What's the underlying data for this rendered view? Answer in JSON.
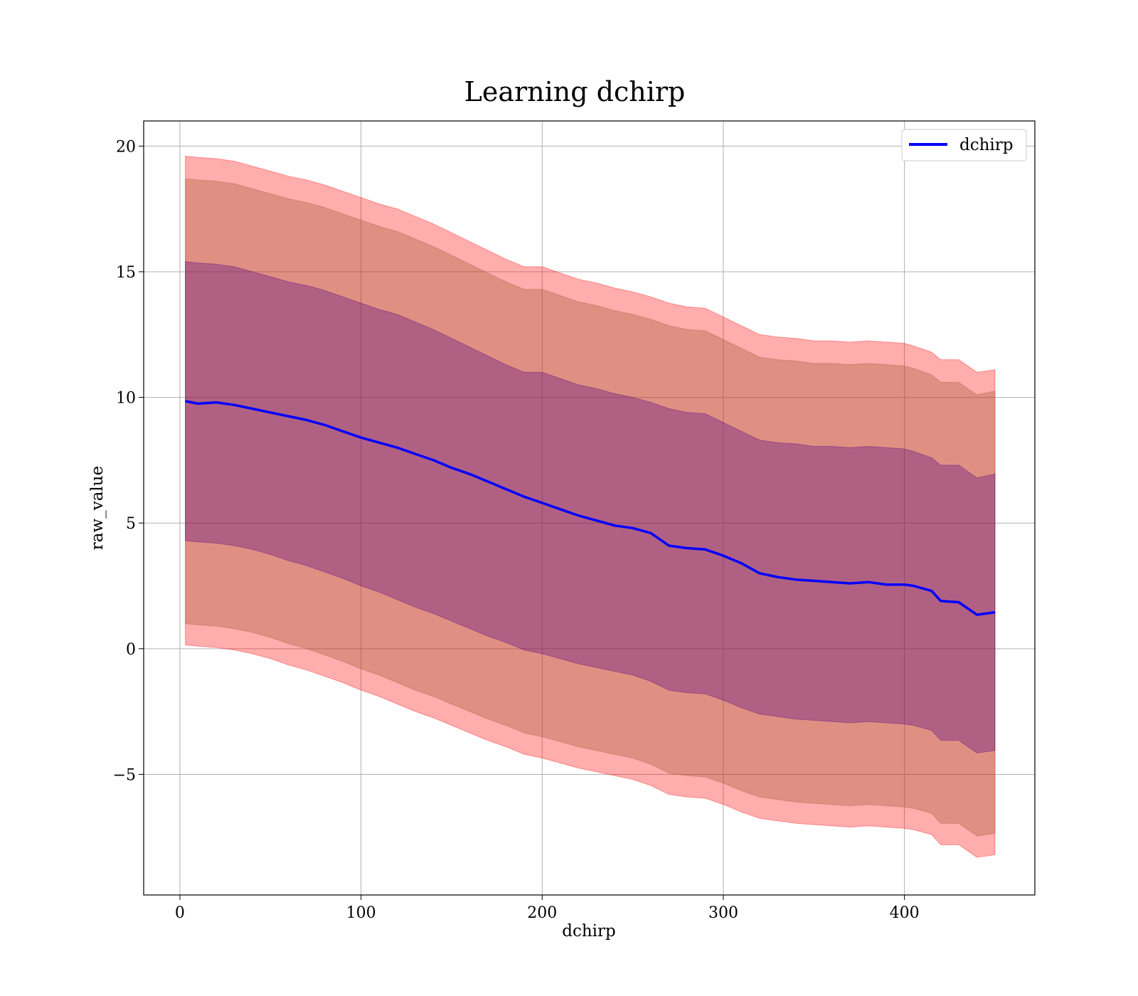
{
  "chart_data": {
    "type": "area",
    "title": "Learning dchirp",
    "xlabel": "dchirp",
    "ylabel": "raw_value",
    "xlim": [
      -20,
      472
    ],
    "ylim": [
      -9.8,
      21
    ],
    "xticks": [
      0,
      100,
      200,
      300,
      400
    ],
    "yticks": [
      -5,
      0,
      5,
      10,
      15,
      20
    ],
    "ytick_labels": [
      "−5",
      "0",
      "5",
      "10",
      "15",
      "20"
    ],
    "grid": true,
    "legend": {
      "position": "top-right",
      "entries": [
        "dchirp"
      ]
    },
    "colors": {
      "line": "#0000ff",
      "band_outer": "#ff0000",
      "band_middle": "#a0522d",
      "band_inner": "#4b0082"
    },
    "x": [
      3,
      10,
      20,
      30,
      40,
      50,
      60,
      70,
      80,
      90,
      100,
      110,
      120,
      130,
      140,
      150,
      160,
      170,
      180,
      190,
      200,
      210,
      220,
      230,
      240,
      250,
      260,
      270,
      280,
      290,
      300,
      310,
      320,
      330,
      340,
      350,
      360,
      370,
      380,
      390,
      400,
      405,
      415,
      420,
      430,
      440,
      450
    ],
    "series": [
      {
        "name": "dchirp",
        "values": [
          9.85,
          9.75,
          9.8,
          9.7,
          9.55,
          9.4,
          9.25,
          9.1,
          8.9,
          8.65,
          8.4,
          8.2,
          8.0,
          7.75,
          7.5,
          7.2,
          6.95,
          6.65,
          6.35,
          6.05,
          5.8,
          5.55,
          5.3,
          5.1,
          4.9,
          4.8,
          4.6,
          4.1,
          4.0,
          3.95,
          3.7,
          3.4,
          3.0,
          2.85,
          2.75,
          2.7,
          2.65,
          2.6,
          2.65,
          2.55,
          2.55,
          2.5,
          2.3,
          1.9,
          1.85,
          1.35,
          1.45
        ]
      }
    ],
    "bands": [
      {
        "level": "outer",
        "upper": [
          19.6,
          19.55,
          19.5,
          19.4,
          19.2,
          19.0,
          18.8,
          18.65,
          18.45,
          18.2,
          17.95,
          17.7,
          17.5,
          17.2,
          16.9,
          16.55,
          16.2,
          15.85,
          15.5,
          15.2,
          15.2,
          14.95,
          14.7,
          14.55,
          14.35,
          14.2,
          14.0,
          13.75,
          13.6,
          13.55,
          13.2,
          12.85,
          12.5,
          12.4,
          12.35,
          12.25,
          12.25,
          12.2,
          12.25,
          12.2,
          12.15,
          12.05,
          11.8,
          11.5,
          11.5,
          11.0,
          11.1
        ],
        "lower": [
          0.15,
          0.1,
          0.05,
          -0.05,
          -0.2,
          -0.4,
          -0.65,
          -0.85,
          -1.1,
          -1.35,
          -1.65,
          -1.9,
          -2.2,
          -2.5,
          -2.75,
          -3.05,
          -3.35,
          -3.65,
          -3.9,
          -4.2,
          -4.35,
          -4.55,
          -4.75,
          -4.9,
          -5.05,
          -5.2,
          -5.45,
          -5.8,
          -5.9,
          -5.95,
          -6.2,
          -6.5,
          -6.75,
          -6.85,
          -6.95,
          -7.0,
          -7.05,
          -7.1,
          -7.05,
          -7.1,
          -7.15,
          -7.2,
          -7.4,
          -7.8,
          -7.8,
          -8.3,
          -8.2
        ]
      },
      {
        "level": "middle",
        "upper": [
          18.7,
          18.65,
          18.6,
          18.5,
          18.3,
          18.1,
          17.9,
          17.75,
          17.55,
          17.3,
          17.05,
          16.8,
          16.6,
          16.3,
          16.0,
          15.65,
          15.3,
          14.95,
          14.6,
          14.3,
          14.3,
          14.05,
          13.8,
          13.65,
          13.45,
          13.3,
          13.1,
          12.85,
          12.7,
          12.65,
          12.3,
          11.95,
          11.6,
          11.5,
          11.45,
          11.35,
          11.35,
          11.3,
          11.35,
          11.3,
          11.25,
          11.15,
          10.9,
          10.6,
          10.6,
          10.1,
          10.25
        ],
        "lower": [
          1.0,
          0.95,
          0.9,
          0.8,
          0.65,
          0.45,
          0.2,
          0.0,
          -0.25,
          -0.5,
          -0.8,
          -1.05,
          -1.35,
          -1.65,
          -1.9,
          -2.2,
          -2.5,
          -2.8,
          -3.05,
          -3.35,
          -3.5,
          -3.7,
          -3.9,
          -4.05,
          -4.2,
          -4.35,
          -4.6,
          -4.95,
          -5.05,
          -5.1,
          -5.35,
          -5.65,
          -5.9,
          -6.0,
          -6.1,
          -6.15,
          -6.2,
          -6.25,
          -6.2,
          -6.25,
          -6.3,
          -6.35,
          -6.55,
          -6.95,
          -6.95,
          -7.45,
          -7.35
        ]
      },
      {
        "level": "inner",
        "upper": [
          15.4,
          15.35,
          15.3,
          15.2,
          15.0,
          14.8,
          14.6,
          14.45,
          14.25,
          14.0,
          13.75,
          13.5,
          13.3,
          13.0,
          12.7,
          12.35,
          12.0,
          11.65,
          11.3,
          11.0,
          11.0,
          10.75,
          10.5,
          10.35,
          10.15,
          10.0,
          9.8,
          9.55,
          9.4,
          9.35,
          9.0,
          8.65,
          8.3,
          8.2,
          8.15,
          8.05,
          8.05,
          8.0,
          8.05,
          8.0,
          7.95,
          7.85,
          7.6,
          7.3,
          7.3,
          6.8,
          6.95
        ],
        "lower": [
          4.3,
          4.25,
          4.2,
          4.1,
          3.95,
          3.75,
          3.5,
          3.3,
          3.05,
          2.8,
          2.5,
          2.25,
          1.95,
          1.65,
          1.4,
          1.1,
          0.8,
          0.5,
          0.25,
          -0.05,
          -0.2,
          -0.4,
          -0.6,
          -0.75,
          -0.9,
          -1.05,
          -1.3,
          -1.65,
          -1.75,
          -1.8,
          -2.05,
          -2.35,
          -2.6,
          -2.7,
          -2.8,
          -2.85,
          -2.9,
          -2.95,
          -2.9,
          -2.95,
          -3.0,
          -3.05,
          -3.25,
          -3.65,
          -3.65,
          -4.15,
          -4.05
        ]
      }
    ]
  }
}
